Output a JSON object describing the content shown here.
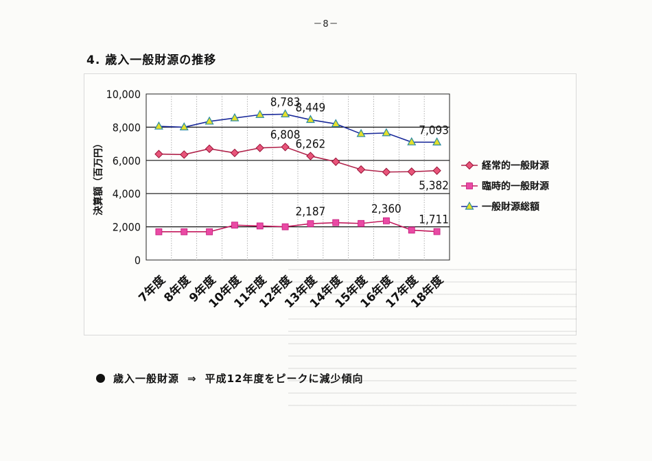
{
  "page": {
    "number": "－8－",
    "title": "4. 歳入一般財源の推移"
  },
  "summary": {
    "subject": "歳入一般財源",
    "arrow": "⇒",
    "text": "平成12年度をピークに減少傾向"
  },
  "chart_data": {
    "type": "line",
    "title": "",
    "xlabel": "",
    "ylabel": "決算額（百万円）",
    "ylim": [
      0,
      10000
    ],
    "yticks": [
      0,
      2000,
      4000,
      6000,
      8000,
      10000
    ],
    "ytick_labels": [
      "0",
      "2,000",
      "4,000",
      "6,000",
      "8,000",
      "10,000"
    ],
    "categories": [
      "7年度",
      "8年度",
      "9年度",
      "10年度",
      "11年度",
      "12年度",
      "13年度",
      "14年度",
      "15年度",
      "16年度",
      "17年度",
      "18年度"
    ],
    "series": [
      {
        "name": "経常的一般財源",
        "color": "#b0224a",
        "marker": "diamond",
        "marker_color": "#e8557a",
        "values": [
          6380,
          6350,
          6700,
          6450,
          6750,
          6808,
          6262,
          5920,
          5450,
          5300,
          5320,
          5382
        ]
      },
      {
        "name": "臨時的一般財源",
        "color": "#c2185b",
        "marker": "square",
        "marker_color": "#e94aa4",
        "values": [
          1700,
          1700,
          1700,
          2100,
          2050,
          2000,
          2187,
          2250,
          2200,
          2360,
          1800,
          1711
        ]
      },
      {
        "name": "一般財源総額",
        "color": "#1a2a9a",
        "marker": "triangle",
        "marker_color": "#e6df2a",
        "values": [
          8050,
          8000,
          8350,
          8550,
          8750,
          8783,
          8449,
          8200,
          7600,
          7650,
          7100,
          7093
        ]
      }
    ],
    "annotations": [
      {
        "text": "8,783",
        "series": 2,
        "index": 5
      },
      {
        "text": "8,449",
        "series": 2,
        "index": 6
      },
      {
        "text": "7,093",
        "series": 2,
        "index": 11
      },
      {
        "text": "6,808",
        "series": 0,
        "index": 5
      },
      {
        "text": "6,262",
        "series": 0,
        "index": 6
      },
      {
        "text": "5,382",
        "series": 0,
        "index": 11
      },
      {
        "text": "2,187",
        "series": 1,
        "index": 6
      },
      {
        "text": "2,360",
        "series": 1,
        "index": 9
      },
      {
        "text": "1,711",
        "series": 1,
        "index": 11
      }
    ],
    "grid": true,
    "legend_position": "right"
  }
}
